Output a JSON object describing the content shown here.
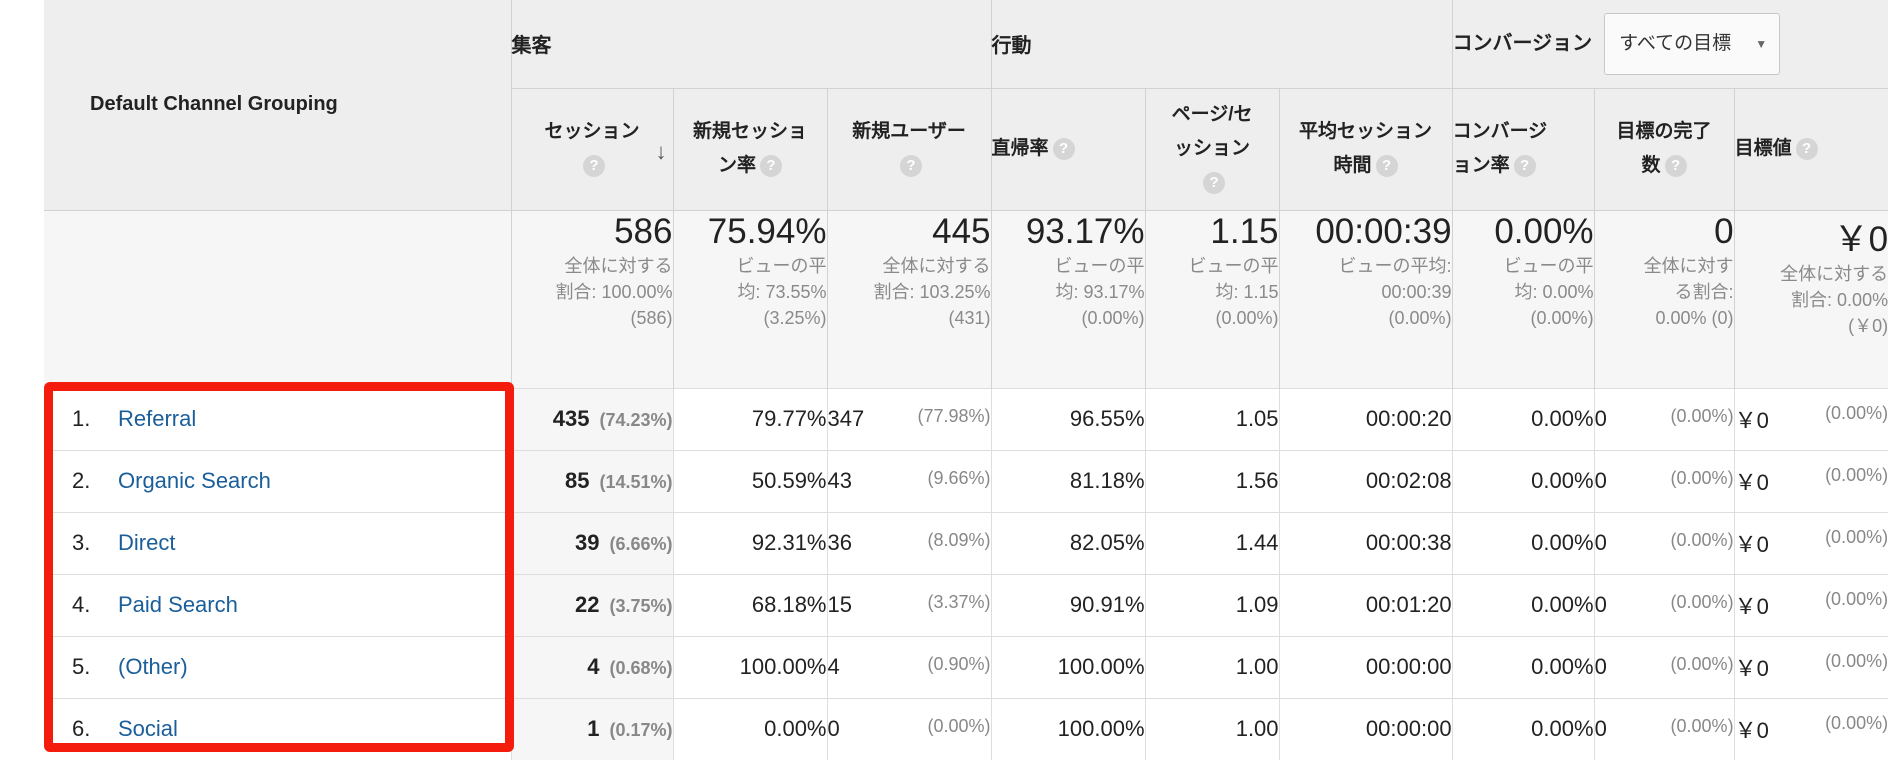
{
  "header": {
    "dimension": "Default Channel Grouping",
    "groups": {
      "acquisition": "集客",
      "behavior": "行動",
      "conversion": "コンバージョン"
    },
    "goal_select": "すべての目標",
    "columns": [
      "セッション",
      "新規セッション率",
      "新規ユーザー",
      "直帰率",
      "ページ/セッション",
      "平均セッション時間",
      "コンバージョン率",
      "目標の完了数",
      "目標値"
    ]
  },
  "totals": [
    {
      "value": "586",
      "sub": [
        "全体に対する",
        "割合: 100.00%",
        "(586)"
      ]
    },
    {
      "value": "75.94%",
      "sub": [
        "ビューの平",
        "均: 73.55%",
        "(3.25%)"
      ]
    },
    {
      "value": "445",
      "sub": [
        "全体に対する",
        "割合: 103.25%",
        "(431)"
      ]
    },
    {
      "value": "93.17%",
      "sub": [
        "ビューの平",
        "均: 93.17%",
        "(0.00%)"
      ]
    },
    {
      "value": "1.15",
      "sub": [
        "ビューの平",
        "均: 1.15",
        "(0.00%)"
      ]
    },
    {
      "value": "00:00:39",
      "sub": [
        "ビューの平均:",
        "00:00:39",
        "(0.00%)"
      ]
    },
    {
      "value": "0.00%",
      "sub": [
        "ビューの平",
        "均: 0.00%",
        "(0.00%)"
      ]
    },
    {
      "value": "0",
      "sub": [
        "全体に対す",
        "る割合:",
        "0.00% (0)"
      ]
    },
    {
      "value": "￥0",
      "sub": [
        "全体に対する",
        "割合: 0.00%",
        "(￥0)"
      ]
    }
  ],
  "rows": [
    {
      "num": "1.",
      "channel": "Referral",
      "sessions": "435",
      "sessions_pct": "(74.23%)",
      "new_rate": "79.77%",
      "new_users": "347",
      "new_users_pct": "(77.98%)",
      "bounce": "96.55%",
      "pps": "1.05",
      "duration": "00:00:20",
      "conv_rate": "0.00%",
      "goal_comp": "0",
      "goal_comp_pct": "(0.00%)",
      "goal_val": "￥0",
      "goal_val_pct": "(0.00%)"
    },
    {
      "num": "2.",
      "channel": "Organic Search",
      "sessions": "85",
      "sessions_pct": "(14.51%)",
      "new_rate": "50.59%",
      "new_users": "43",
      "new_users_pct": "(9.66%)",
      "bounce": "81.18%",
      "pps": "1.56",
      "duration": "00:02:08",
      "conv_rate": "0.00%",
      "goal_comp": "0",
      "goal_comp_pct": "(0.00%)",
      "goal_val": "￥0",
      "goal_val_pct": "(0.00%)"
    },
    {
      "num": "3.",
      "channel": "Direct",
      "sessions": "39",
      "sessions_pct": "(6.66%)",
      "new_rate": "92.31%",
      "new_users": "36",
      "new_users_pct": "(8.09%)",
      "bounce": "82.05%",
      "pps": "1.44",
      "duration": "00:00:38",
      "conv_rate": "0.00%",
      "goal_comp": "0",
      "goal_comp_pct": "(0.00%)",
      "goal_val": "￥0",
      "goal_val_pct": "(0.00%)"
    },
    {
      "num": "4.",
      "channel": "Paid Search",
      "sessions": "22",
      "sessions_pct": "(3.75%)",
      "new_rate": "68.18%",
      "new_users": "15",
      "new_users_pct": "(3.37%)",
      "bounce": "90.91%",
      "pps": "1.09",
      "duration": "00:01:20",
      "conv_rate": "0.00%",
      "goal_comp": "0",
      "goal_comp_pct": "(0.00%)",
      "goal_val": "￥0",
      "goal_val_pct": "(0.00%)"
    },
    {
      "num": "5.",
      "channel": "(Other)",
      "sessions": "4",
      "sessions_pct": "(0.68%)",
      "new_rate": "100.00%",
      "new_users": "4",
      "new_users_pct": "(0.90%)",
      "bounce": "100.00%",
      "pps": "1.00",
      "duration": "00:00:00",
      "conv_rate": "0.00%",
      "goal_comp": "0",
      "goal_comp_pct": "(0.00%)",
      "goal_val": "￥0",
      "goal_val_pct": "(0.00%)"
    },
    {
      "num": "6.",
      "channel": "Social",
      "sessions": "1",
      "sessions_pct": "(0.17%)",
      "new_rate": "0.00%",
      "new_users": "0",
      "new_users_pct": "(0.00%)",
      "bounce": "100.00%",
      "pps": "1.00",
      "duration": "00:00:00",
      "conv_rate": "0.00%",
      "goal_comp": "0",
      "goal_comp_pct": "(0.00%)",
      "goal_val": "￥0",
      "goal_val_pct": "(0.00%)"
    }
  ],
  "colors": {
    "highlight": "#f41d0d",
    "link": "#1a5e9a",
    "header_bg": "#eeeeee"
  },
  "icons": {
    "help": "question-circle-icon",
    "sort": "arrow-down-icon",
    "dropdown": "caret-down-icon"
  }
}
